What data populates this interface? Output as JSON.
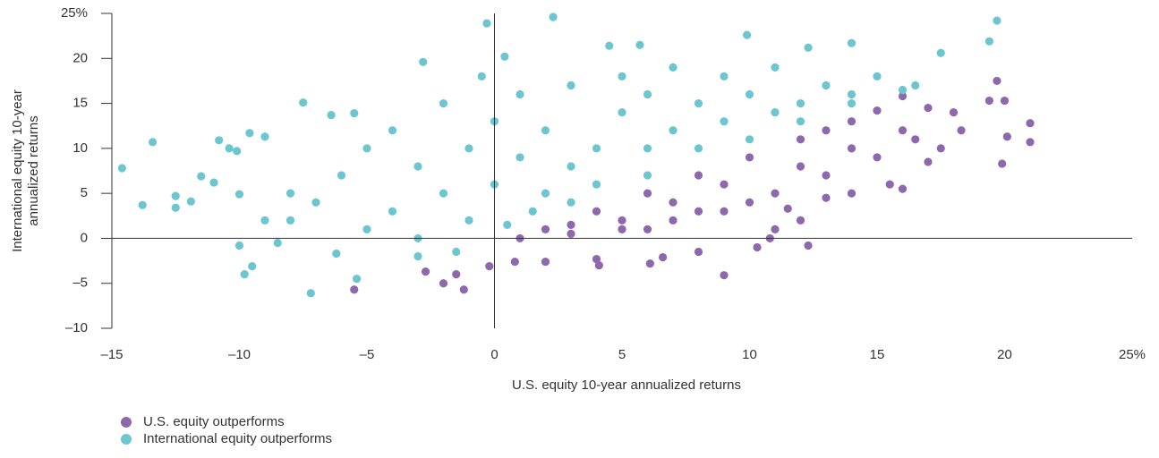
{
  "chart_data": {
    "type": "scatter",
    "x_label": "U.S. equity 10-year annualized returns",
    "y_label": [
      "International equity 10-year",
      "annualized returns"
    ],
    "xlim": [
      -15,
      25
    ],
    "ylim": [
      -10,
      25
    ],
    "xticks": [
      {
        "value": -15,
        "label": "–15"
      },
      {
        "value": -10,
        "label": "–10"
      },
      {
        "value": -5,
        "label": "–5"
      },
      0,
      5,
      10,
      15,
      20,
      {
        "value": 25,
        "label": "25%"
      }
    ],
    "yticks": [
      {
        "value": -10,
        "label": "–10"
      },
      {
        "value": -5,
        "label": "–5"
      },
      0,
      5,
      10,
      15,
      20,
      {
        "value": 25,
        "label": "25%"
      }
    ],
    "series": [
      {
        "name": "U.S. equity outperforms",
        "color": "#8e68ad",
        "x": [
          21,
          21,
          19.9,
          20.1,
          19.7,
          19.4,
          20,
          18.3,
          -5.5,
          -1.2,
          -1.5,
          -2,
          -2.7,
          9,
          12.3,
          6.1,
          -0.2,
          0.8,
          2,
          4,
          4.1,
          6.6,
          8,
          10.3,
          10.8,
          11,
          12,
          11.5,
          13,
          14,
          15.5,
          16,
          17,
          17.5,
          16.5,
          18,
          17,
          16,
          15,
          14,
          13,
          12,
          10,
          8,
          6,
          4,
          2,
          1,
          3,
          5,
          7,
          9,
          11,
          13,
          15,
          10,
          8,
          6,
          12,
          14,
          16,
          9,
          7,
          5,
          3
        ],
        "values": [
          12.8,
          10.7,
          8.3,
          11.3,
          17.5,
          15.3,
          15.3,
          12,
          -5.7,
          -5.7,
          -4,
          -5,
          -3.7,
          -4.1,
          -0.8,
          -2.8,
          -3.1,
          -2.6,
          -2.6,
          -2.3,
          -3,
          -2.1,
          -1.5,
          -1,
          0,
          1,
          2,
          3.3,
          4.5,
          5,
          6,
          5.5,
          8.5,
          10,
          11,
          14,
          14.5,
          15.8,
          14.2,
          13,
          12,
          11,
          9,
          7,
          5,
          3,
          1,
          0,
          0.5,
          1,
          2,
          3,
          5,
          7,
          9,
          4,
          3,
          1,
          8,
          10,
          12,
          6,
          4,
          2,
          1.5
        ]
      },
      {
        "name": "International equity outperforms",
        "color": "#6cc6cf",
        "x": [
          -14.6,
          -13.8,
          -13.4,
          -12.5,
          -12.5,
          -11.9,
          -11.5,
          -11,
          -10.8,
          -10.4,
          -10.1,
          -10,
          -9.8,
          -10,
          -9.5,
          -9.6,
          -9,
          -7.5,
          -6.2,
          -5.5,
          -7.2,
          -5.4,
          -6.4,
          -2.8,
          -0.3,
          2.3,
          -0.5,
          0.4,
          4.5,
          5.7,
          9.9,
          19.7,
          19.4,
          17.5,
          14,
          12.3,
          -8,
          -8,
          -6,
          -5,
          -4,
          -4,
          -3,
          -3,
          -2,
          -2,
          -1,
          -1,
          0,
          0,
          1,
          1,
          2,
          2,
          3,
          3,
          4,
          4,
          5,
          5,
          6,
          6,
          7,
          7,
          8,
          8,
          9,
          9,
          10,
          10,
          11,
          11,
          12,
          13,
          14,
          15,
          16,
          16.5,
          -1.5,
          -3,
          -5,
          -7,
          -9,
          -8.5,
          1.5,
          0.5,
          3,
          6,
          12,
          14
        ],
        "values": [
          7.8,
          3.7,
          10.7,
          4.7,
          3.4,
          4.1,
          6.9,
          6.2,
          10.9,
          10,
          9.7,
          4.9,
          -4,
          -0.8,
          -3.1,
          11.7,
          11.3,
          15.1,
          -1.7,
          13.9,
          -6.1,
          -4.5,
          13.7,
          19.6,
          23.9,
          24.6,
          18,
          20.2,
          21.4,
          21.5,
          22.6,
          24.2,
          21.9,
          20.6,
          21.7,
          21.2,
          5,
          2,
          7,
          10,
          3,
          12,
          8,
          0,
          5,
          15,
          10,
          2,
          6,
          13,
          9,
          16,
          5,
          12,
          8,
          17,
          10,
          6,
          14,
          18,
          10,
          16,
          12,
          19,
          15,
          10,
          13,
          18,
          16,
          11,
          14,
          19,
          15,
          17,
          16,
          18,
          16.5,
          17,
          -1.5,
          -2,
          1,
          4,
          2,
          -0.5,
          3,
          1.5,
          4,
          7,
          13,
          15
        ]
      }
    ]
  }
}
